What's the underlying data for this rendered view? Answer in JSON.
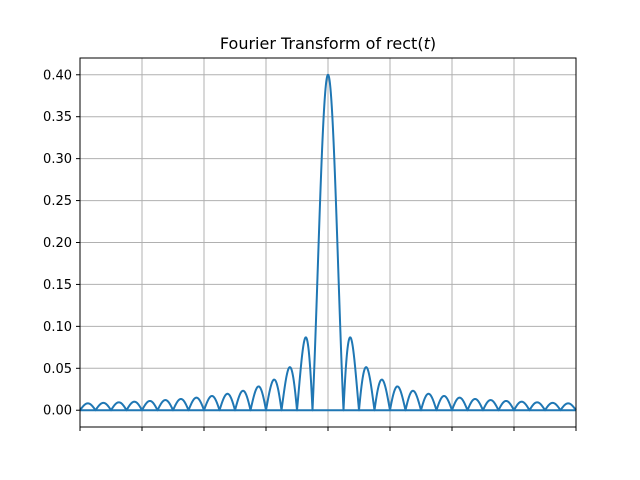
{
  "chart_data": {
    "type": "line",
    "title": {
      "prefix": "Fourier Transform of rect(",
      "variable": "t",
      "suffix": ")"
    },
    "xlabel": "",
    "ylabel": "",
    "xlim": [
      -4,
      4
    ],
    "ylim": [
      -0.02,
      0.42
    ],
    "x_ticks": [
      -4,
      -3,
      -2,
      -1,
      0,
      1,
      2,
      3,
      4
    ],
    "x_tick_labels_visible": false,
    "y_ticks": [
      0.0,
      0.05,
      0.1,
      0.15,
      0.2,
      0.25,
      0.3,
      0.35,
      0.4
    ],
    "y_tick_labels": [
      "0.00",
      "0.05",
      "0.10",
      "0.15",
      "0.20",
      "0.25",
      "0.30",
      "0.35",
      "0.40"
    ],
    "grid": true,
    "baseline": 0.0,
    "series": [
      {
        "color": "#1f77b4",
        "function": "peak * |sinc(x * freq_scale)|",
        "peak": 0.4,
        "freq_scale": 4,
        "x_range": [
          -4,
          4
        ],
        "samples": 1601
      }
    ]
  },
  "colors": {
    "line": "#1f77b4",
    "grid": "#b0b0b0",
    "axes": "#000000",
    "background": "#ffffff"
  }
}
